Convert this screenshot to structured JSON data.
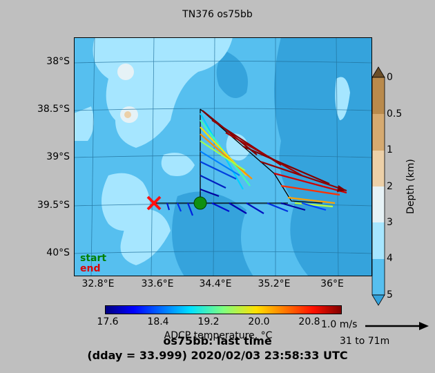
{
  "title": "TN376 os75bb",
  "map": {
    "lat_ticks": [
      "38°S",
      "38.5°S",
      "39°S",
      "39.5°S",
      "40°S"
    ],
    "lon_ticks": [
      "32.8°E",
      "33.6°E",
      "34.4°E",
      "35.2°E",
      "36°E"
    ],
    "colors": {
      "land_shallow": "#a6e6ff",
      "ocean_mid": "#56bfef",
      "ocean_deep": "#35a3dc",
      "track": "#000000"
    }
  },
  "legend": {
    "start": "start",
    "end": "end",
    "start_color": "#008000",
    "end_color": "#e00000"
  },
  "depth_bar": {
    "label": "Depth (km)",
    "ticks": [
      "0",
      "0.5",
      "1",
      "2",
      "3",
      "4",
      "5"
    ],
    "colors": [
      "#8b6a3c",
      "#b98a4c",
      "#d6aa70",
      "#ecd0a8",
      "#e6f2f6",
      "#a6e6ff",
      "#56bfef"
    ]
  },
  "temp_bar": {
    "label": "ADCP temperature, °C",
    "ticks": [
      "17.6",
      "18.4",
      "19.2",
      "20.0",
      "20.8"
    ]
  },
  "scale": {
    "speed": "1.0 m/s",
    "depth_range": "31 to 71m"
  },
  "footer": {
    "line1": "os75bb: last time",
    "line2": "(dday = 33.999) 2020/02/03 23:58:33 UTC"
  }
}
